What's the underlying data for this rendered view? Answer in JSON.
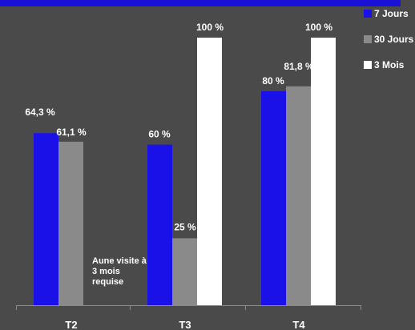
{
  "colors": {
    "background": "#4a4a4a",
    "topbar": "#1a10d8",
    "axis": "#8a8a8a"
  },
  "chart_data": {
    "type": "bar",
    "title": "",
    "xlabel": "",
    "ylabel": "",
    "ylim": [
      0,
      100
    ],
    "grid": false,
    "legend_position": "top-right",
    "categories": [
      "T2",
      "T3",
      "T4"
    ],
    "series": [
      {
        "name": "7 Jours",
        "color": "#1a10e8",
        "values": [
          64.3,
          60,
          80
        ],
        "labels": [
          "64,3 %",
          "60 %",
          "80 %"
        ]
      },
      {
        "name": "30 Jours",
        "color": "#8a8a8a",
        "values": [
          61.1,
          25,
          81.8
        ],
        "labels": [
          "61,1 %",
          "25 %",
          "81,8 %"
        ]
      },
      {
        "name": "3 Mois",
        "color": "#ffffff",
        "values": [
          null,
          100,
          100
        ],
        "labels": [
          "",
          "100 %",
          "100 %"
        ]
      }
    ],
    "annotations": [
      {
        "text": "Aune visite à 3 mois requise",
        "category": "T2",
        "series": "3 Mois"
      }
    ]
  }
}
